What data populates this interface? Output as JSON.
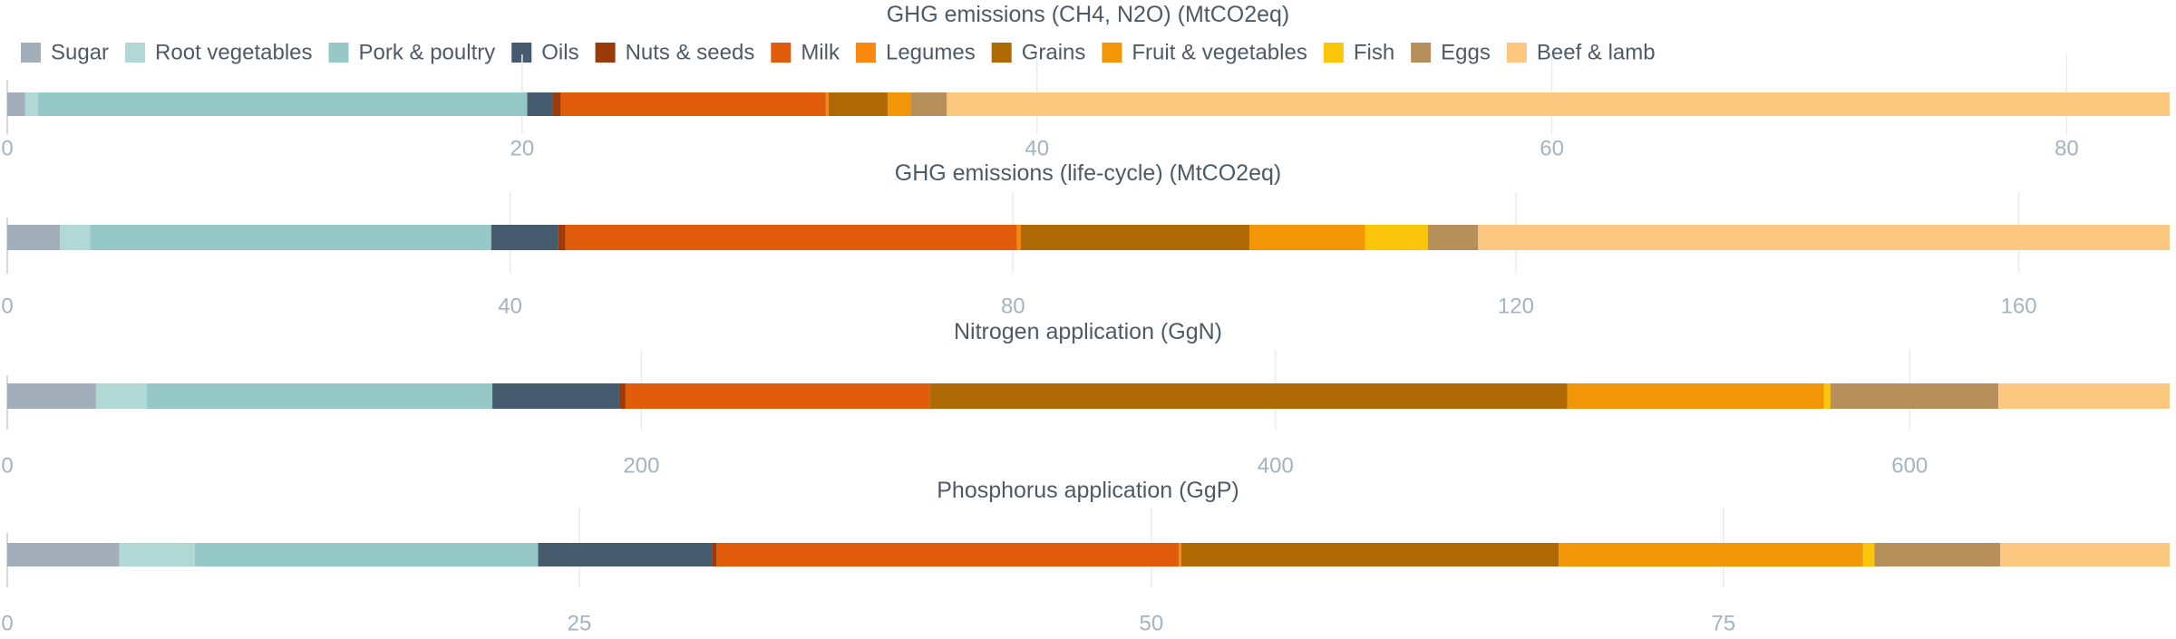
{
  "chart_data": {
    "type": "bar",
    "stacked": true,
    "orientation": "horizontal",
    "legend_position": "top-left",
    "grid": true,
    "legend": [
      {
        "name": "Sugar",
        "color": "#a2afbb"
      },
      {
        "name": "Root vegetables",
        "color": "#b2d8d6"
      },
      {
        "name": "Pork & poultry",
        "color": "#96c8c8"
      },
      {
        "name": "Oils",
        "color": "#465b6e"
      },
      {
        "name": "Nuts & seeds",
        "color": "#9b3a0a"
      },
      {
        "name": "Milk",
        "color": "#e15d0c"
      },
      {
        "name": "Legumes",
        "color": "#f98811"
      },
      {
        "name": "Grains",
        "color": "#b06a05"
      },
      {
        "name": "Fruit & vegetables",
        "color": "#f29607"
      },
      {
        "name": "Fish",
        "color": "#fbc50a"
      },
      {
        "name": "Eggs",
        "color": "#b68f5a"
      },
      {
        "name": "Beef & lamb",
        "color": "#fcc87f"
      }
    ],
    "panels": [
      {
        "title": "GHG emissions (CH4, N2O) (MtCO2eq)",
        "xlim": [
          0,
          84
        ],
        "ticks": [
          0,
          20,
          40,
          60,
          80
        ],
        "tick_labels": [
          "0",
          "20",
          "40",
          "60",
          "80"
        ],
        "values": [
          0.7,
          0.5,
          19.0,
          1.0,
          0.3,
          10.3,
          0.1,
          2.3,
          0.9,
          0.0,
          1.4,
          47.5
        ]
      },
      {
        "title": "GHG emissions (life-cycle) (MtCO2eq)",
        "xlim": [
          0,
          172
        ],
        "ticks": [
          0,
          40,
          80,
          120,
          160
        ],
        "tick_labels": [
          "0",
          "40",
          "80",
          "120",
          "160"
        ],
        "values": [
          4.2,
          2.4,
          31.9,
          5.3,
          0.6,
          35.9,
          0.3,
          18.2,
          9.2,
          5.0,
          4.0,
          55.0
        ]
      },
      {
        "title": "Nitrogen application (GgN)",
        "xlim": [
          0,
          682
        ],
        "ticks": [
          0,
          200,
          400,
          600
        ],
        "tick_labels": [
          "0",
          "200",
          "400",
          "600"
        ],
        "values": [
          28,
          16,
          109,
          40,
          2,
          96,
          0,
          201,
          81,
          2,
          53,
          54
        ]
      },
      {
        "title": "Phosphorus application (GgP)",
        "xlim": [
          0,
          94.5
        ],
        "ticks": [
          0,
          25,
          50,
          75
        ],
        "tick_labels": [
          "0",
          "25",
          "50",
          "75"
        ],
        "values": [
          4.9,
          3.3,
          15.0,
          7.6,
          0.2,
          20.2,
          0.1,
          16.5,
          13.3,
          0.5,
          5.5,
          7.4
        ]
      }
    ]
  }
}
